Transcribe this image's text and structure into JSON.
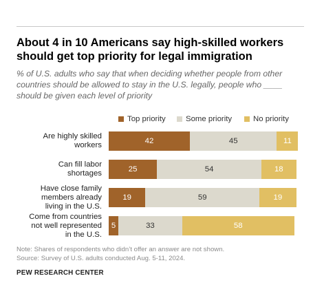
{
  "title": "About 4 in 10 Americans say high-skilled workers should get top priority for legal immigration",
  "subtitle": "% of U.S. adults who say that when deciding whether people from other countries should be allowed to stay in the U.S. legally, people who ____ should be given each level of priority",
  "note": "Note: Shares of respondents who didn’t offer an answer are not shown.",
  "source": "Source: Survey of U.S. adults conducted Aug. 5-11, 2024.",
  "brand": "PEW RESEARCH CENTER",
  "chart_data": {
    "type": "bar",
    "orientation": "horizontal",
    "stacked": true,
    "legend_position": "top",
    "categories": [
      "Are highly skilled workers",
      "Can fill labor shortages",
      "Have close family members already living in the U.S.",
      "Come from countries not well represented in the U.S."
    ],
    "category_lines": [
      [
        "Are highly skilled",
        "workers"
      ],
      [
        "Can fill labor",
        "shortages"
      ],
      [
        "Have close family",
        "members already",
        "living in the U.S."
      ],
      [
        "Come from countries",
        "not well represented",
        "in the U.S."
      ]
    ],
    "series": [
      {
        "name": "Top priority",
        "color": "#a0632a",
        "text_color": "#ffffff",
        "values": [
          42,
          25,
          19,
          5
        ]
      },
      {
        "name": "Some priority",
        "color": "#dcd9cd",
        "text_color": "#333333",
        "values": [
          45,
          54,
          59,
          33
        ]
      },
      {
        "name": "No priority",
        "color": "#e1bf63",
        "text_color": "#ffffff",
        "values": [
          11,
          18,
          19,
          58
        ]
      }
    ]
  }
}
